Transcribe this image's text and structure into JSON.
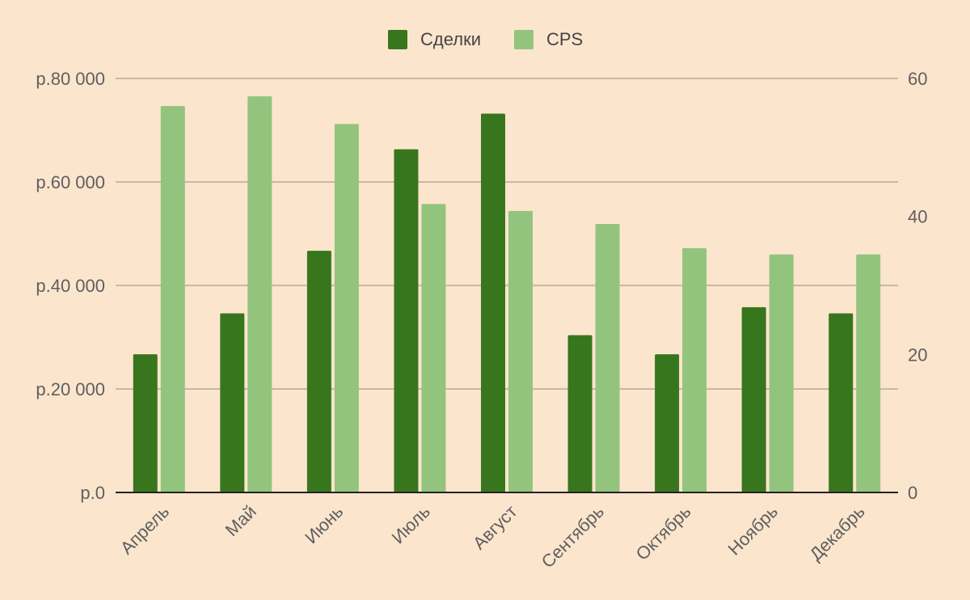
{
  "chart_data": {
    "type": "bar",
    "categories": [
      "Апрель",
      "Май",
      "Июнь",
      "Июль",
      "Август",
      "Сентябрь",
      "Октябрь",
      "Ноябрь",
      "Декабрь"
    ],
    "series": [
      {
        "name": "Сделки",
        "axis": "left",
        "color": "#38761d",
        "values": [
          26700,
          34600,
          46700,
          66300,
          73200,
          30400,
          26700,
          35800,
          34600
        ]
      },
      {
        "name": "CPS",
        "axis": "right",
        "color": "#93c47d",
        "values": [
          56,
          57.4,
          53.4,
          41.8,
          40.8,
          38.9,
          35.4,
          34.5,
          34.5
        ]
      }
    ],
    "y_left": {
      "lim": [
        0,
        80000
      ],
      "ticks": [
        0,
        20000,
        40000,
        60000,
        80000
      ],
      "tick_labels": [
        "р.0",
        "р.20 000",
        "р.40 000",
        "р.60 000",
        "р.80 000"
      ]
    },
    "y_right": {
      "lim": [
        0,
        60
      ],
      "ticks": [
        0,
        20,
        40,
        60
      ],
      "tick_labels": [
        "0",
        "20",
        "40",
        "60"
      ]
    },
    "grid": true,
    "legend": "top-center",
    "background": "#fce5cd",
    "gridline_color": "#b7aa9a"
  }
}
